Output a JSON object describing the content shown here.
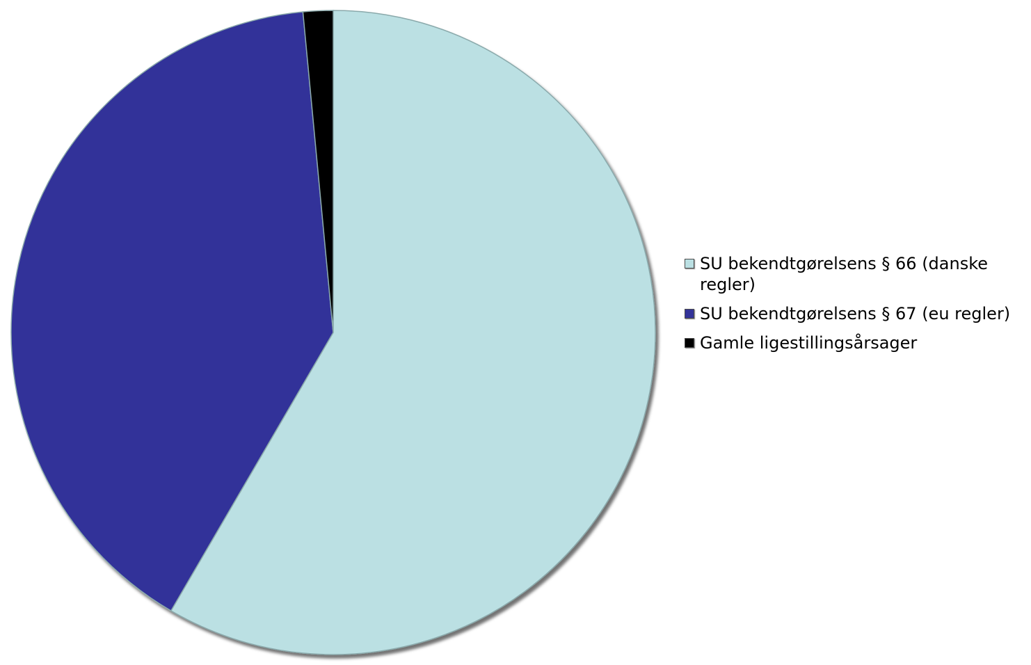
{
  "chart_data": {
    "type": "pie",
    "title": "",
    "start_angle_deg": 0,
    "direction": "clockwise",
    "slices": [
      {
        "label": "SU bekendtgørelsens § 66 (danske regler)",
        "value": 58.4,
        "color": "#bbe0e3"
      },
      {
        "label": "SU bekendtgørelsens § 67 (eu regler)",
        "value": 40.1,
        "color": "#333399"
      },
      {
        "label": "Gamle ligestillingsårsager",
        "value": 1.5,
        "color": "#000000"
      }
    ],
    "legend": {
      "position": "right"
    }
  }
}
